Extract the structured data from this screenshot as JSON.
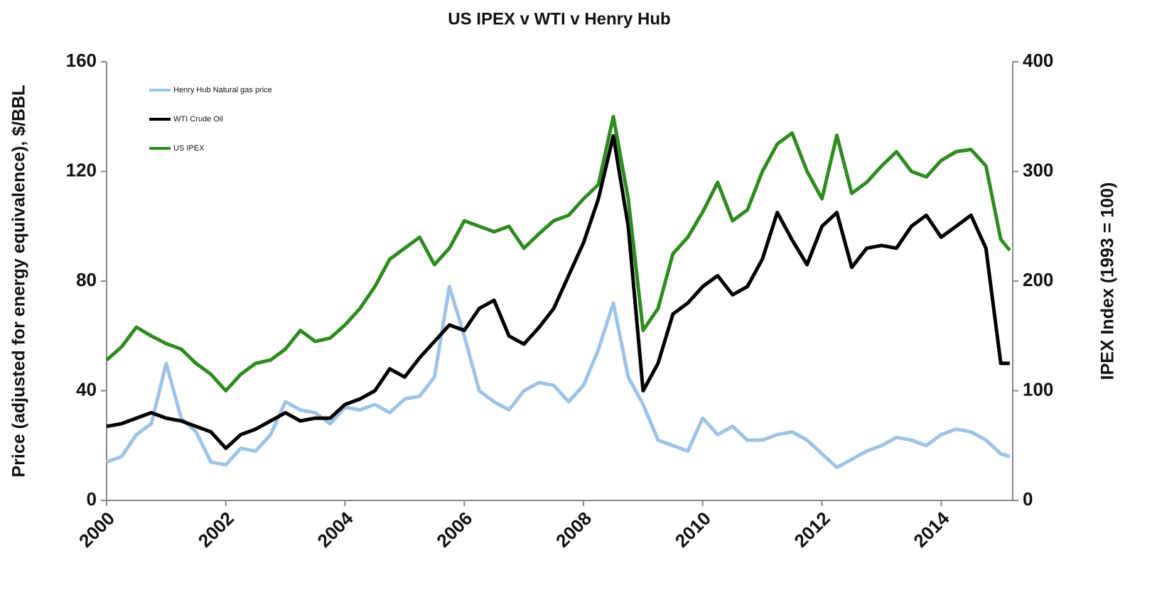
{
  "chart_data": {
    "type": "line",
    "title": "US IPEX v WTI v Henry Hub",
    "y_label": "Price (adjusted for energy equivalence), $/BBL",
    "y2_label": "IPEX Index (1993 = 100)",
    "x": [
      2000,
      2000.25,
      2000.5,
      2000.75,
      2001,
      2001.25,
      2001.5,
      2001.75,
      2002,
      2002.25,
      2002.5,
      2002.75,
      2003,
      2003.25,
      2003.5,
      2003.75,
      2004,
      2004.25,
      2004.5,
      2004.75,
      2005,
      2005.25,
      2005.5,
      2005.75,
      2006,
      2006.25,
      2006.5,
      2006.75,
      2007,
      2007.25,
      2007.5,
      2007.75,
      2008,
      2008.25,
      2008.5,
      2008.75,
      2009,
      2009.25,
      2009.5,
      2009.75,
      2010,
      2010.25,
      2010.5,
      2010.75,
      2011,
      2011.25,
      2011.5,
      2011.75,
      2012,
      2012.25,
      2012.5,
      2012.75,
      2013,
      2013.25,
      2013.5,
      2013.75,
      2014,
      2014.25,
      2014.5,
      2014.75,
      2015,
      2015.15
    ],
    "series": [
      {
        "name": "Henry Hub Natural gas price",
        "color": "#9dc3e6",
        "axis": "y",
        "values": [
          14,
          16,
          24,
          28,
          50,
          30,
          25,
          14,
          13,
          19,
          18,
          24,
          36,
          33,
          32,
          28,
          34,
          33,
          35,
          32,
          37,
          38,
          45,
          78,
          60,
          40,
          36,
          33,
          40,
          43,
          42,
          36,
          42,
          55,
          72,
          45,
          35,
          22,
          20,
          18,
          30,
          24,
          27,
          22,
          22,
          24,
          25,
          22,
          17,
          12,
          15,
          18,
          20,
          23,
          22,
          20,
          24,
          26,
          25,
          22,
          17,
          16
        ]
      },
      {
        "name": "WTI Crude Oil",
        "color": "#000000",
        "axis": "y",
        "values": [
          27,
          28,
          30,
          32,
          30,
          29,
          27,
          25,
          19,
          24,
          26,
          29,
          32,
          29,
          30,
          30,
          35,
          37,
          40,
          48,
          45,
          52,
          58,
          64,
          62,
          70,
          73,
          60,
          57,
          63,
          70,
          82,
          94,
          110,
          133,
          100,
          40,
          50,
          68,
          72,
          78,
          82,
          75,
          78,
          88,
          105,
          95,
          86,
          100,
          105,
          85,
          92,
          93,
          92,
          100,
          104,
          96,
          100,
          104,
          92,
          50,
          50
        ]
      },
      {
        "name": "US IPEX",
        "color": "#2e8b1f",
        "axis": "y2",
        "values": [
          128,
          140,
          158,
          150,
          143,
          138,
          125,
          115,
          100,
          115,
          125,
          128,
          138,
          155,
          145,
          148,
          160,
          175,
          195,
          220,
          230,
          240,
          215,
          230,
          255,
          250,
          245,
          250,
          230,
          243,
          255,
          260,
          275,
          288,
          350,
          275,
          155,
          175,
          225,
          240,
          263,
          290,
          255,
          265,
          300,
          325,
          335,
          300,
          275,
          333,
          280,
          290,
          305,
          318,
          300,
          295,
          310,
          318,
          320,
          305,
          238,
          228
        ]
      }
    ],
    "xlim": [
      2000,
      2015.2
    ],
    "xticks": [
      2000,
      2002,
      2004,
      2006,
      2008,
      2010,
      2012,
      2014
    ],
    "ylim": [
      0,
      160
    ],
    "yticks": [
      0,
      40,
      80,
      120,
      160
    ],
    "y2lim": [
      0,
      400
    ],
    "y2ticks": [
      0,
      100,
      200,
      300,
      400
    ],
    "grid": false,
    "legend": "upper left"
  }
}
